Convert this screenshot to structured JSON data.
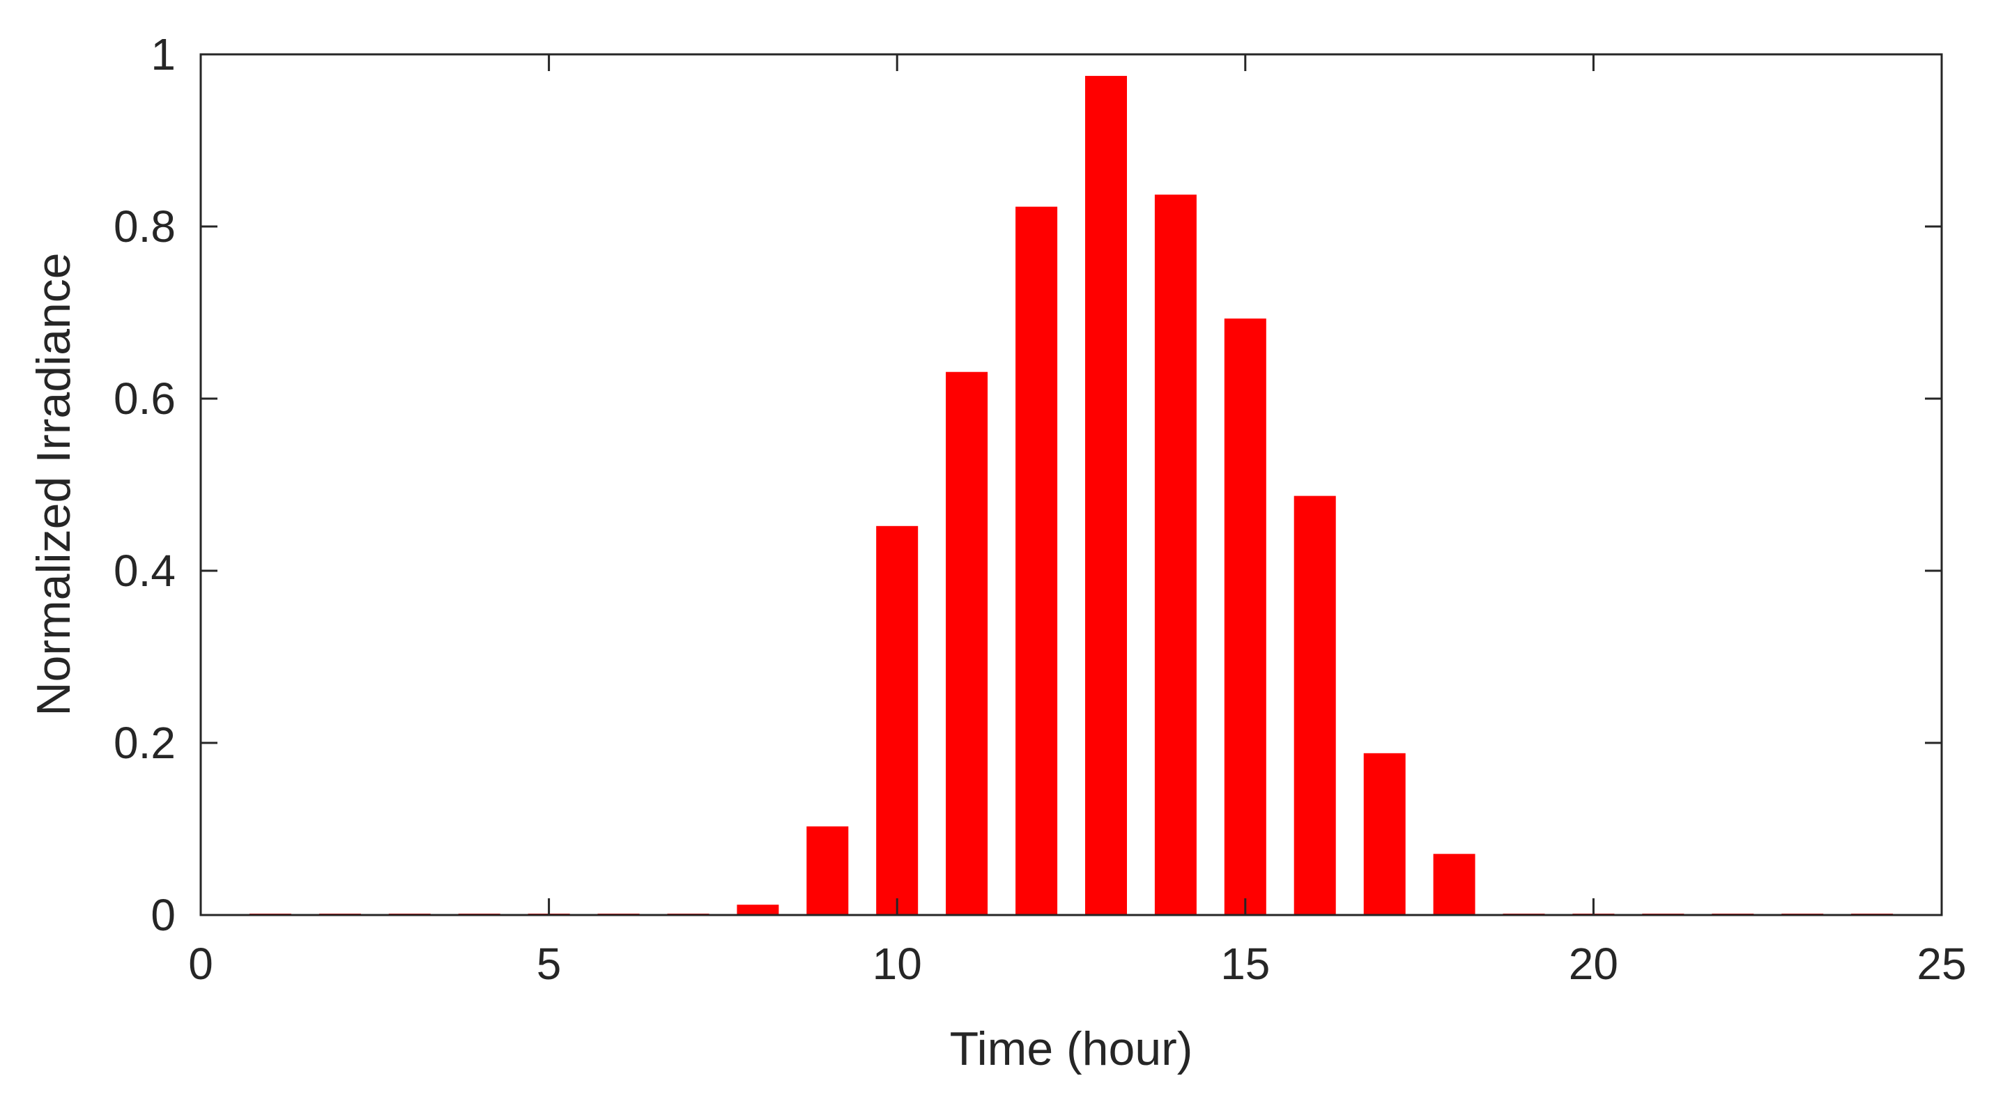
{
  "chart_data": {
    "type": "bar",
    "title": "",
    "xlabel": "Time (hour)",
    "ylabel": "Normalized Irradiance",
    "xlim": [
      0,
      25
    ],
    "ylim": [
      0,
      1
    ],
    "x_ticks": [
      0,
      5,
      10,
      15,
      20,
      25
    ],
    "y_ticks": [
      0,
      0.2,
      0.4,
      0.6,
      0.8,
      1
    ],
    "x_tick_labels": [
      "0",
      "5",
      "10",
      "15",
      "20",
      "25"
    ],
    "y_tick_labels": [
      "0",
      "0.2",
      "0.4",
      "0.6",
      "0.8",
      "1"
    ],
    "bar_width": 0.6,
    "grid": false,
    "legend": "none",
    "colors": {
      "bar": "#ff0000",
      "axis": "#262626",
      "background": "#ffffff"
    },
    "x": [
      1,
      2,
      3,
      4,
      5,
      6,
      7,
      8,
      9,
      10,
      11,
      12,
      13,
      14,
      15,
      16,
      17,
      18,
      19,
      20,
      21,
      22,
      23,
      24
    ],
    "values": [
      0,
      0,
      0,
      0,
      0,
      0,
      0,
      0.012,
      0.103,
      0.452,
      0.631,
      0.823,
      0.975,
      0.837,
      0.693,
      0.487,
      0.188,
      0.071,
      0,
      0,
      0,
      0,
      0,
      0
    ]
  }
}
